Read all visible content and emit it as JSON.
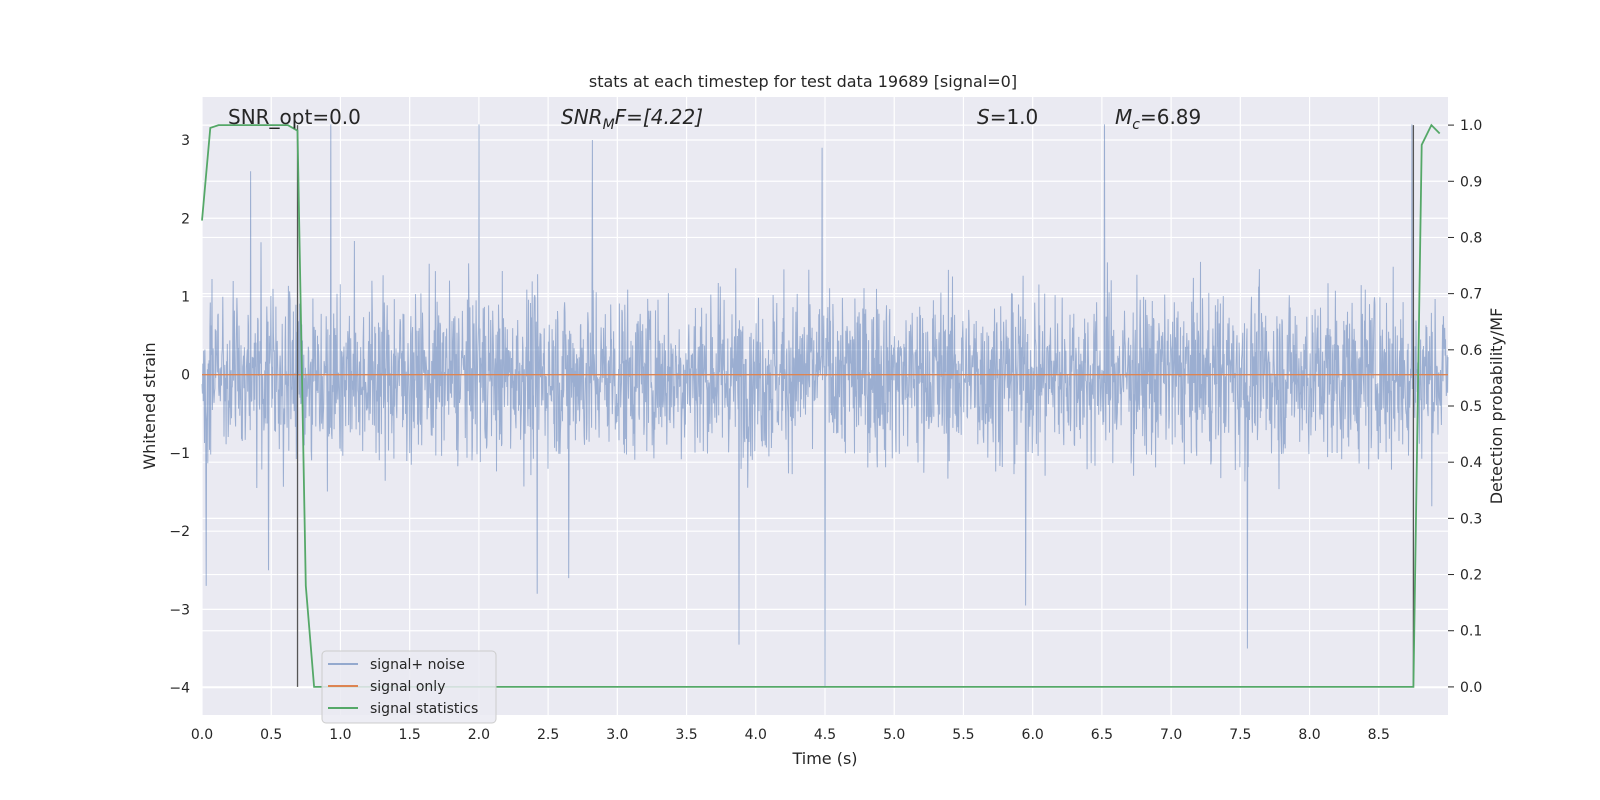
{
  "chart_data": {
    "type": "line",
    "title": "stats at each timestep for test data 19689 [signal=0]",
    "xlabel": "Time (s)",
    "ylabel_left": "Whitened strain",
    "ylabel_right": "Detection probability/MF",
    "xlim": [
      0.0,
      9.0
    ],
    "ylim_left": [
      -4.35,
      3.55
    ],
    "ylim_right": [
      -0.05,
      1.05
    ],
    "x_ticks": [
      "0.0",
      "0.5",
      "1.0",
      "1.5",
      "2.0",
      "2.5",
      "3.0",
      "3.5",
      "4.0",
      "4.5",
      "5.0",
      "5.5",
      "6.0",
      "6.5",
      "7.0",
      "7.5",
      "8.0",
      "8.5"
    ],
    "y_ticks_left": [
      "3",
      "2",
      "1",
      "0",
      "−1",
      "−2",
      "−3",
      "−4"
    ],
    "y_ticks_right": [
      "1.0",
      "0.9",
      "0.8",
      "0.7",
      "0.6",
      "0.5",
      "0.4",
      "0.3",
      "0.2",
      "0.1",
      "0.0"
    ],
    "grid": true,
    "annotations": {
      "snr_opt": "SNR_opt=0.0",
      "snr_mf": "SNR",
      "snr_mf_sub": "M",
      "snr_mf_rest": "F=[4.22]",
      "s": "S",
      "s_rest": "=1.0",
      "mc": "M",
      "mc_sub": "c",
      "mc_rest": "=6.89"
    },
    "vertical_lines_x": [
      0.69,
      8.75
    ],
    "series": [
      {
        "name": "signal+ noise",
        "color": "#4c72b0",
        "axis": "left",
        "description_stats": {
          "envelope_mean_upper": 1.3,
          "envelope_mean_lower": -1.3
        },
        "spikes": [
          {
            "x": 0.03,
            "y": -2.7
          },
          {
            "x": 0.35,
            "y": 2.6
          },
          {
            "x": 0.48,
            "y": -2.5
          },
          {
            "x": 0.93,
            "y": 3.2
          },
          {
            "x": 2.0,
            "y": 3.2
          },
          {
            "x": 2.42,
            "y": -2.8
          },
          {
            "x": 2.65,
            "y": -2.6
          },
          {
            "x": 2.82,
            "y": 3.0
          },
          {
            "x": 3.88,
            "y": -3.45
          },
          {
            "x": 4.5,
            "y": -4.0
          },
          {
            "x": 4.48,
            "y": 2.9
          },
          {
            "x": 5.95,
            "y": -2.95
          },
          {
            "x": 6.52,
            "y": 3.2
          },
          {
            "x": 7.55,
            "y": -3.5
          },
          {
            "x": 8.74,
            "y": 3.2
          }
        ]
      },
      {
        "name": "signal only",
        "color": "#dd8452",
        "axis": "left",
        "x": [
          0.0,
          9.0
        ],
        "y": [
          0.0,
          0.0
        ]
      },
      {
        "name": "signal statistics",
        "color": "#55a868",
        "axis": "right",
        "x": [
          0.0,
          0.06,
          0.12,
          0.19,
          0.25,
          0.31,
          0.38,
          0.44,
          0.5,
          0.56,
          0.62,
          0.69,
          0.75,
          0.81,
          1.0,
          2.0,
          3.0,
          4.0,
          5.0,
          6.0,
          7.0,
          8.0,
          8.5,
          8.75,
          8.81,
          8.88,
          8.94
        ],
        "y": [
          0.83,
          0.995,
          1.0,
          1.0,
          1.0,
          1.0,
          1.0,
          1.0,
          1.0,
          1.0,
          1.0,
          0.99,
          0.18,
          0.0,
          0.0,
          0.0,
          0.0,
          0.0,
          0.0,
          0.0,
          0.0,
          0.0,
          0.0,
          0.0,
          0.965,
          1.0,
          0.985
        ]
      }
    ],
    "legend": {
      "placement": "lower-left",
      "entries": [
        "signal+ noise",
        "signal only",
        "signal statistics"
      ]
    }
  },
  "colors": {
    "plot_bg": "#eaeaf2",
    "grid": "#ffffff",
    "noise": "#4c72b0",
    "signal": "#dd8452",
    "stats": "#55a868",
    "vline": "#555555"
  }
}
